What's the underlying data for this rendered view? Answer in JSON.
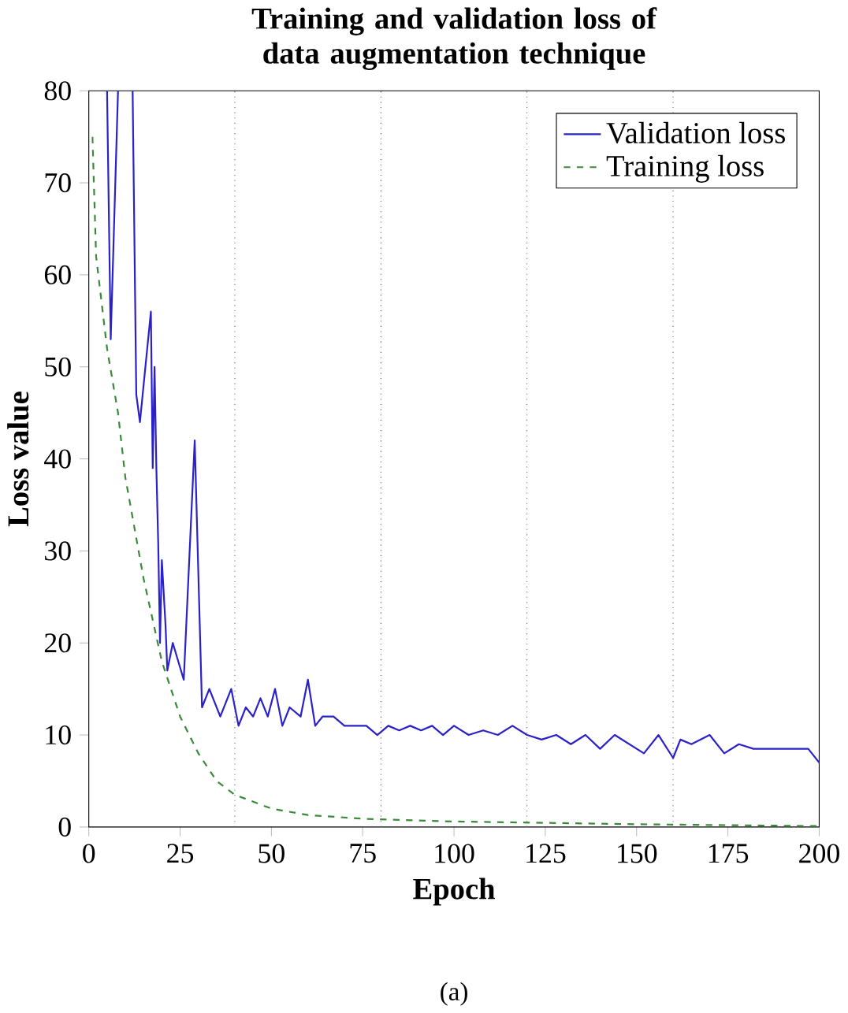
{
  "chart_data": {
    "type": "line",
    "title": "Training and validation loss of data augmentation technique",
    "xlabel": "Epoch",
    "ylabel": "Loss value",
    "annotations": [
      "(a)"
    ],
    "xlim": [
      0,
      200
    ],
    "ylim": [
      0,
      80
    ],
    "xticks": [
      0,
      25,
      50,
      75,
      100,
      125,
      150,
      175,
      200
    ],
    "yticks": [
      0,
      10,
      20,
      30,
      40,
      50,
      60,
      70,
      80
    ],
    "legend": "top right",
    "ref_lines": [
      {
        "axis": "x",
        "value": 40,
        "color": "#555555",
        "line_style": "dotted"
      },
      {
        "axis": "x",
        "value": 80,
        "color": "#555555",
        "line_style": "dotted"
      },
      {
        "axis": "x",
        "value": 120,
        "color": "#555555",
        "line_style": "dotted"
      },
      {
        "axis": "x",
        "value": 160,
        "color": "#555555",
        "line_style": "dotted"
      }
    ],
    "series": [
      {
        "name": "Validation loss",
        "color": "#2a22c8",
        "line_style": "solid",
        "x": [
          5,
          6,
          8,
          10,
          12,
          13,
          14,
          16,
          17,
          17.5,
          18,
          18.5,
          19,
          19.5,
          20,
          21,
          21.5,
          23,
          26,
          29,
          31,
          33,
          36,
          39,
          41,
          43,
          45,
          47,
          49,
          51,
          53,
          55,
          58,
          60,
          62,
          64,
          67,
          70,
          73,
          76,
          79,
          82,
          85,
          88,
          91,
          94,
          97,
          100,
          104,
          108,
          112,
          116,
          120,
          124,
          128,
          132,
          136,
          140,
          144,
          148,
          152,
          156,
          160,
          162,
          165,
          170,
          174,
          178,
          182,
          186,
          190,
          194,
          197,
          200
        ],
        "values": [
          80,
          53,
          80,
          null,
          80,
          47,
          44,
          52,
          56,
          39,
          50,
          39,
          31,
          20,
          29,
          22,
          17,
          20,
          16,
          42,
          13,
          15,
          12,
          15,
          11,
          13,
          12,
          14,
          12,
          15,
          11,
          13,
          12,
          16,
          11,
          12,
          12,
          11,
          11,
          11,
          10,
          11,
          10.5,
          11,
          10.5,
          11,
          10,
          11,
          10,
          10.5,
          10,
          11,
          10,
          9.5,
          10,
          9,
          10,
          8.5,
          10,
          9,
          8,
          10,
          7.5,
          9.5,
          9,
          10,
          8,
          9,
          8.5,
          8.5,
          8.5,
          8.5,
          8.5,
          7
        ]
      },
      {
        "name": "Training loss",
        "color": "#3a8a3a",
        "line_style": "dashed",
        "x": [
          1,
          2,
          5,
          8,
          10,
          15,
          20,
          25,
          30,
          35,
          40,
          50,
          60,
          75,
          100,
          150,
          200
        ],
        "values": [
          75,
          62,
          52,
          45,
          38,
          27,
          18,
          12,
          8,
          5,
          3.5,
          2,
          1.3,
          0.9,
          0.6,
          0.3,
          0.1
        ]
      }
    ]
  }
}
